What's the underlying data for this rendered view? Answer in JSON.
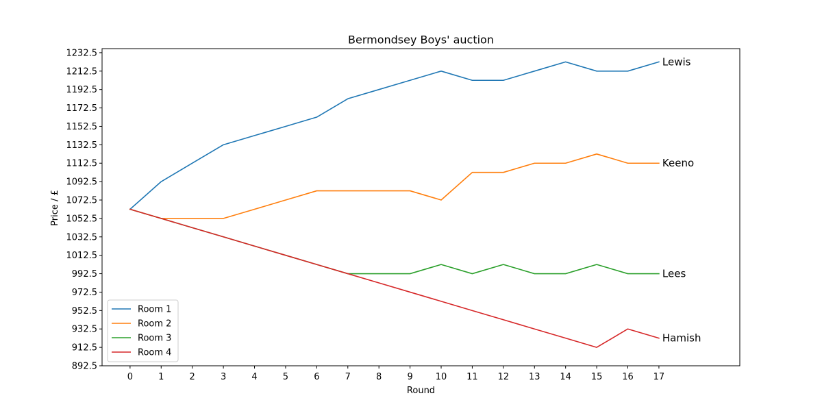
{
  "chart_data": {
    "type": "line",
    "title": "Bermondsey Boys' auction",
    "xlabel": "Round",
    "ylabel": "Price / £",
    "x": [
      0,
      1,
      2,
      3,
      4,
      5,
      6,
      7,
      8,
      9,
      10,
      11,
      12,
      13,
      14,
      15,
      16,
      17
    ],
    "xlim": [
      -0.9,
      19.6
    ],
    "ylim": [
      892.5,
      1236.9
    ],
    "yticks": [
      892.5,
      912.5,
      932.5,
      952.5,
      972.5,
      992.5,
      1012.5,
      1032.5,
      1052.5,
      1072.5,
      1092.5,
      1112.5,
      1132.5,
      1152.5,
      1172.5,
      1192.5,
      1212.5,
      1232.5
    ],
    "legend_position": "lower-left",
    "grid": false,
    "series": [
      {
        "name": "Room 1",
        "end_label": "Lewis",
        "color": "#1f77b4",
        "values": [
          1062.5,
          1092.5,
          1112.5,
          1132.5,
          1142.5,
          1152.5,
          1162.5,
          1182.5,
          1192.5,
          1202.5,
          1212.5,
          1202.5,
          1202.5,
          1212.5,
          1222.5,
          1212.5,
          1212.5,
          1222.5
        ]
      },
      {
        "name": "Room 2",
        "end_label": "Keeno",
        "color": "#ff7f0e",
        "values": [
          1062.5,
          1052.5,
          1052.5,
          1052.5,
          1062.5,
          1072.5,
          1082.5,
          1082.5,
          1082.5,
          1082.5,
          1072.5,
          1102.5,
          1102.5,
          1112.5,
          1112.5,
          1122.5,
          1112.5,
          1112.5
        ]
      },
      {
        "name": "Room 3",
        "end_label": "Lees",
        "color": "#2ca02c",
        "values": [
          1062.5,
          1052.5,
          1042.5,
          1032.5,
          1022.5,
          1012.5,
          1002.5,
          992.5,
          992.5,
          992.5,
          1002.5,
          992.5,
          1002.5,
          992.5,
          992.5,
          1002.5,
          992.5,
          992.5
        ]
      },
      {
        "name": "Room 4",
        "end_label": "Hamish",
        "color": "#d62728",
        "values": [
          1062.5,
          1052.5,
          1042.5,
          1032.5,
          1022.5,
          1012.5,
          1002.5,
          992.5,
          982.5,
          972.5,
          962.5,
          952.5,
          942.5,
          932.5,
          922.5,
          912.5,
          932.5,
          922.5
        ]
      }
    ]
  }
}
